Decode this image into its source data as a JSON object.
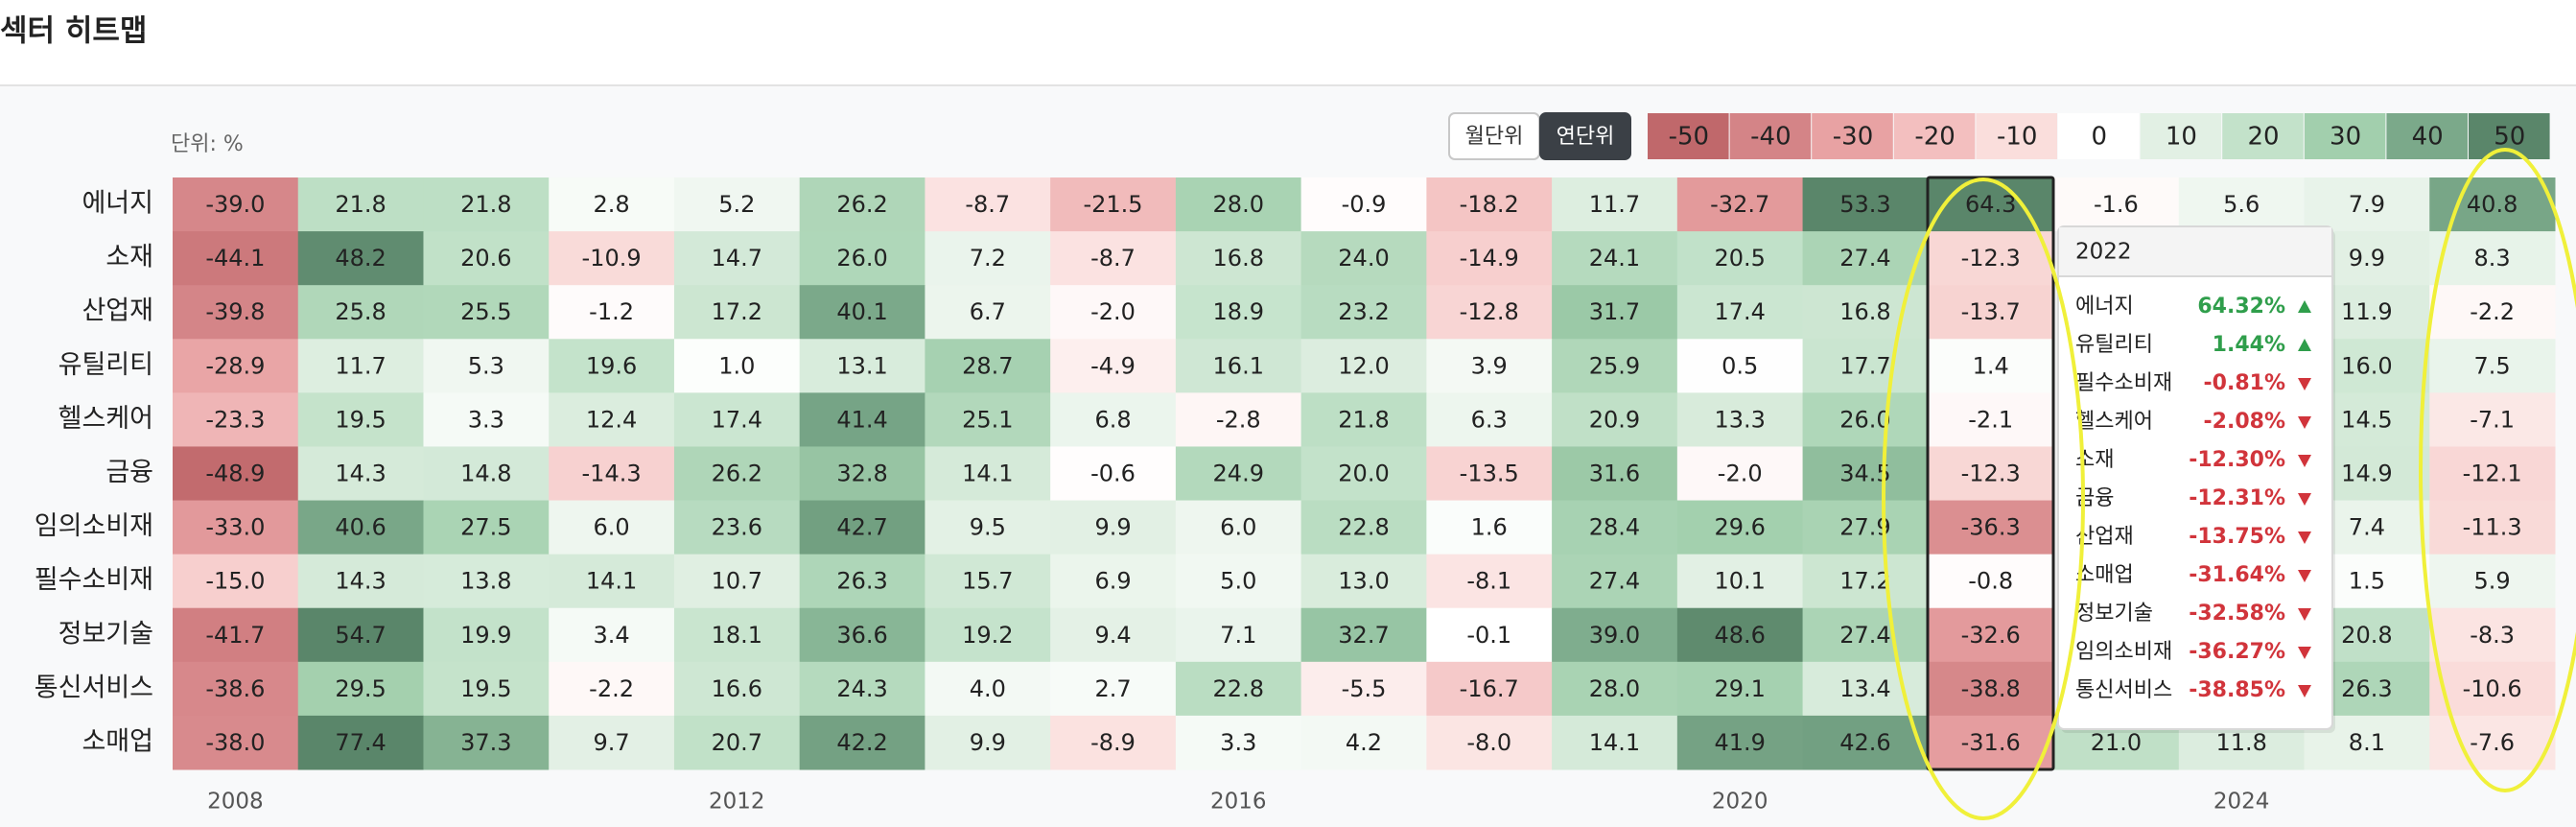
{
  "chart_data": {
    "type": "heatmap",
    "title": "섹터 히트맵",
    "unit_label": "단위: %",
    "categories": [
      "2008",
      null,
      null,
      null,
      "2012",
      null,
      null,
      null,
      "2016",
      null,
      null,
      null,
      "2020",
      null,
      null,
      null,
      "2024",
      null,
      null
    ],
    "series": [
      {
        "name": "에너지",
        "values": [
          -39.0,
          21.8,
          21.8,
          2.8,
          5.2,
          26.2,
          -8.7,
          -21.5,
          28.0,
          -0.9,
          -18.2,
          11.7,
          -32.7,
          53.3,
          64.3,
          -1.6,
          5.6,
          7.9,
          40.8
        ],
        "value_labels": [
          "-39.0",
          "21.8",
          "21.8",
          "2.8",
          "5.2",
          "26.2",
          "-8.7",
          "-21.5",
          "28.0",
          "-0.9",
          "-18.2",
          "11.7",
          "-32.7",
          "53.3",
          "64.3",
          "-1.6",
          "5.6",
          "7.9",
          "40.8"
        ]
      },
      {
        "name": "소재",
        "values": [
          -44.1,
          48.2,
          20.6,
          -10.9,
          14.7,
          26.0,
          7.2,
          -8.7,
          16.8,
          24.0,
          -14.9,
          24.1,
          20.5,
          27.4,
          -12.3,
          null,
          null,
          9.9,
          8.3
        ],
        "value_labels": [
          "-44.1",
          "48.2",
          "20.6",
          "-10.9",
          "14.7",
          "26.0",
          "7.2",
          "-8.7",
          "16.8",
          "24.0",
          "-14.9",
          "24.1",
          "20.5",
          "27.4",
          "-12.3",
          null,
          null,
          "9.9",
          "8.3"
        ]
      },
      {
        "name": "산업재",
        "values": [
          -39.8,
          25.8,
          25.5,
          -1.2,
          17.2,
          40.1,
          6.7,
          -2.0,
          18.9,
          23.2,
          -12.8,
          31.7,
          17.4,
          16.8,
          -13.7,
          null,
          null,
          11.9,
          -2.2
        ],
        "value_labels": [
          "-39.8",
          "25.8",
          "25.5",
          "-1.2",
          "17.2",
          "40.1",
          "6.7",
          "-2.0",
          "18.9",
          "23.2",
          "-12.8",
          "31.7",
          "17.4",
          "16.8",
          "-13.7",
          null,
          null,
          "11.9",
          "-2.2"
        ]
      },
      {
        "name": "유틸리티",
        "values": [
          -28.9,
          11.7,
          5.3,
          19.6,
          1.0,
          13.1,
          28.7,
          -4.9,
          16.1,
          12.0,
          3.9,
          25.9,
          0.5,
          17.7,
          1.4,
          null,
          null,
          16.0,
          7.5
        ],
        "value_labels": [
          "-28.9",
          "11.7",
          "5.3",
          "19.6",
          "1.0",
          "13.1",
          "28.7",
          "-4.9",
          "16.1",
          "12.0",
          "3.9",
          "25.9",
          "0.5",
          "17.7",
          "1.4",
          null,
          null,
          "16.0",
          "7.5"
        ]
      },
      {
        "name": "헬스케어",
        "values": [
          -23.3,
          19.5,
          3.3,
          12.4,
          17.4,
          41.4,
          25.1,
          6.8,
          -2.8,
          21.8,
          6.3,
          20.9,
          13.3,
          26.0,
          -2.1,
          null,
          null,
          14.5,
          -7.1
        ],
        "value_labels": [
          "-23.3",
          "19.5",
          "3.3",
          "12.4",
          "17.4",
          "41.4",
          "25.1",
          "6.8",
          "-2.8",
          "21.8",
          "6.3",
          "20.9",
          "13.3",
          "26.0",
          "-2.1",
          null,
          null,
          "14.5",
          "-7.1"
        ]
      },
      {
        "name": "금융",
        "values": [
          -48.9,
          14.3,
          14.8,
          -14.3,
          26.2,
          32.8,
          14.1,
          -0.6,
          24.9,
          20.0,
          -13.5,
          31.6,
          -2.0,
          34.5,
          -12.3,
          null,
          null,
          14.9,
          -12.1
        ],
        "value_labels": [
          "-48.9",
          "14.3",
          "14.8",
          "-14.3",
          "26.2",
          "32.8",
          "14.1",
          "-0.6",
          "24.9",
          "20.0",
          "-13.5",
          "31.6",
          "-2.0",
          "34.5",
          "-12.3",
          null,
          null,
          "14.9",
          "-12.1"
        ]
      },
      {
        "name": "임의소비재",
        "values": [
          -33.0,
          40.6,
          27.5,
          6.0,
          23.6,
          42.7,
          9.5,
          9.9,
          6.0,
          22.8,
          1.6,
          28.4,
          29.6,
          27.9,
          -36.3,
          null,
          null,
          7.4,
          -11.3
        ],
        "value_labels": [
          "-33.0",
          "40.6",
          "27.5",
          "6.0",
          "23.6",
          "42.7",
          "9.5",
          "9.9",
          "6.0",
          "22.8",
          "1.6",
          "28.4",
          "29.6",
          "27.9",
          "-36.3",
          null,
          null,
          "7.4",
          "-11.3"
        ]
      },
      {
        "name": "필수소비재",
        "values": [
          -15.0,
          14.3,
          13.8,
          14.1,
          10.7,
          26.3,
          15.7,
          6.9,
          5.0,
          13.0,
          -8.1,
          27.4,
          10.1,
          17.2,
          -0.8,
          null,
          null,
          1.5,
          5.9
        ],
        "value_labels": [
          "-15.0",
          "14.3",
          "13.8",
          "14.1",
          "10.7",
          "26.3",
          "15.7",
          "6.9",
          "5.0",
          "13.0",
          "-8.1",
          "27.4",
          "10.1",
          "17.2",
          "-0.8",
          null,
          null,
          "1.5",
          "5.9"
        ]
      },
      {
        "name": "정보기술",
        "values": [
          -41.7,
          54.7,
          19.9,
          3.4,
          18.1,
          36.6,
          19.2,
          9.4,
          7.1,
          32.7,
          -0.1,
          39.0,
          48.6,
          27.4,
          -32.6,
          null,
          null,
          20.8,
          -8.3
        ],
        "value_labels": [
          "-41.7",
          "54.7",
          "19.9",
          "3.4",
          "18.1",
          "36.6",
          "19.2",
          "9.4",
          "7.1",
          "32.7",
          "-0.1",
          "39.0",
          "48.6",
          "27.4",
          "-32.6",
          null,
          null,
          "20.8",
          "-8.3"
        ]
      },
      {
        "name": "통신서비스",
        "values": [
          -38.6,
          29.5,
          19.5,
          -2.2,
          16.6,
          24.3,
          4.0,
          2.7,
          22.8,
          -5.5,
          -16.7,
          28.0,
          29.1,
          13.4,
          -38.8,
          null,
          null,
          26.3,
          -10.6
        ],
        "value_labels": [
          "-38.6",
          "29.5",
          "19.5",
          "-2.2",
          "16.6",
          "24.3",
          "4.0",
          "2.7",
          "22.8",
          "-5.5",
          "-16.7",
          "28.0",
          "29.1",
          "13.4",
          "-38.8",
          null,
          null,
          "26.3",
          "-10.6"
        ]
      },
      {
        "name": "소매업",
        "values": [
          -38.0,
          77.4,
          37.3,
          9.7,
          20.7,
          42.2,
          9.9,
          -8.9,
          3.3,
          4.2,
          -8.0,
          14.1,
          41.9,
          42.6,
          -31.6,
          21.0,
          11.8,
          8.1,
          -7.6
        ],
        "value_labels": [
          "-38.0",
          "77.4",
          "37.3",
          "9.7",
          "20.7",
          "42.2",
          "9.9",
          "-8.9",
          "3.3",
          "4.2",
          "-8.0",
          "14.1",
          "41.9",
          "42.6",
          "-31.6",
          "21.0",
          "11.8",
          "8.1",
          "-7.6"
        ]
      }
    ],
    "color_scale": {
      "values": [
        -50,
        -40,
        -30,
        -20,
        -10,
        0,
        10,
        20,
        30,
        40,
        50
      ],
      "colors": [
        "#c0686b",
        "#d48487",
        "#e8a2a3",
        "#f3bfbf",
        "#fadedc",
        "#ffffff",
        "#e2f0e4",
        "#c3e2ca",
        "#a2cfad",
        "#7ba98a",
        "#5a866a"
      ]
    }
  },
  "controls": {
    "buttons": [
      {
        "label": "월단위",
        "active": false
      },
      {
        "label": "연단위",
        "active": true
      }
    ]
  },
  "tooltip": {
    "title": "2022",
    "positive_color": "#2f9e4b",
    "negative_color": "#d1343b",
    "items": [
      {
        "name": "에너지",
        "value": 64.32,
        "label": "64.32%"
      },
      {
        "name": "유틸리티",
        "value": 1.44,
        "label": "1.44%"
      },
      {
        "name": "필수소비재",
        "value": -0.81,
        "label": "-0.81%"
      },
      {
        "name": "헬스케어",
        "value": -2.08,
        "label": "-2.08%"
      },
      {
        "name": "소재",
        "value": -12.3,
        "label": "-12.30%"
      },
      {
        "name": "금융",
        "value": -12.31,
        "label": "-12.31%"
      },
      {
        "name": "산업재",
        "value": -13.75,
        "label": "-13.75%"
      },
      {
        "name": "소매업",
        "value": -31.64,
        "label": "-31.64%"
      },
      {
        "name": "정보기술",
        "value": -32.58,
        "label": "-32.58%"
      },
      {
        "name": "임의소비재",
        "value": -36.27,
        "label": "-36.27%"
      },
      {
        "name": "통신서비스",
        "value": -38.85,
        "label": "-38.85%"
      }
    ]
  }
}
